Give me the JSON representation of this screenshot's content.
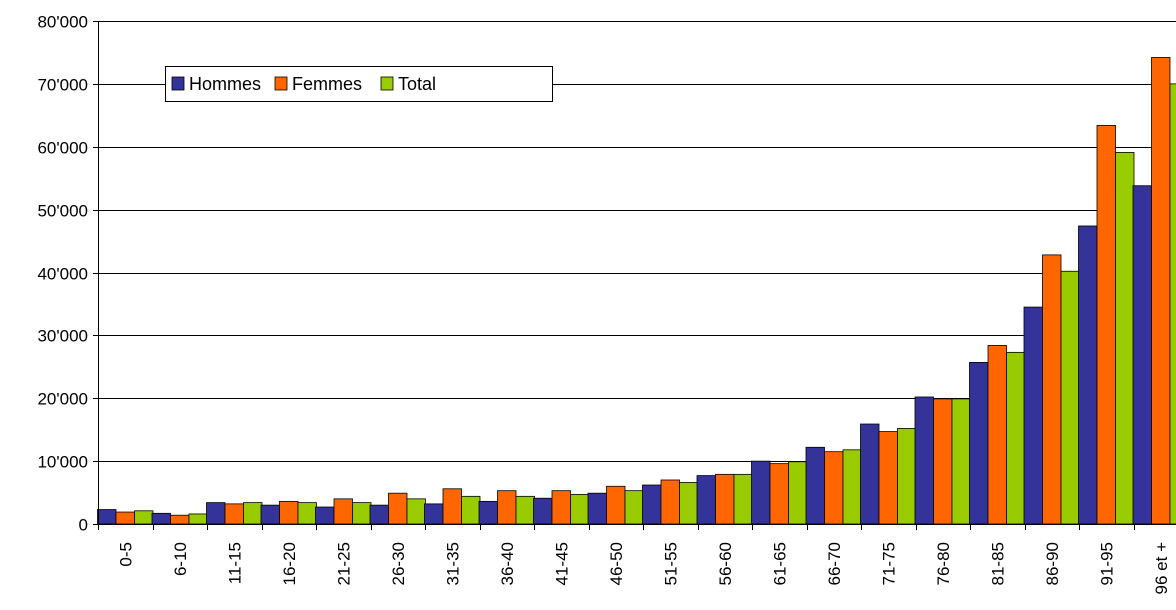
{
  "chart_data": {
    "type": "bar",
    "categories": [
      "0-5",
      "6-10",
      "11-15",
      "16-20",
      "21-25",
      "26-30",
      "31-35",
      "36-40",
      "41-45",
      "46-50",
      "51-55",
      "56-60",
      "61-65",
      "66-70",
      "71-75",
      "76-80",
      "81-85",
      "86-90",
      "91-95",
      "96 et +"
    ],
    "series": [
      {
        "name": "Hommes",
        "color": "#333399",
        "values": [
          2300,
          1700,
          3400,
          3000,
          2700,
          3000,
          3200,
          3600,
          4100,
          4900,
          6200,
          7700,
          10000,
          12200,
          15900,
          20200,
          25700,
          34500,
          47400,
          53800
        ]
      },
      {
        "name": "Femmes",
        "color": "#ff6600",
        "values": [
          1900,
          1400,
          3200,
          3600,
          4000,
          4900,
          5600,
          5300,
          5300,
          6000,
          7000,
          7900,
          9600,
          11500,
          14700,
          19900,
          28400,
          42800,
          63400,
          74200
        ]
      },
      {
        "name": "Total",
        "color": "#99cc00",
        "values": [
          2100,
          1600,
          3400,
          3400,
          3400,
          4000,
          4400,
          4400,
          4700,
          5300,
          6600,
          7900,
          9900,
          11800,
          15200,
          19900,
          27300,
          40200,
          59100,
          70000
        ]
      }
    ],
    "ylim": [
      0,
      80000
    ],
    "yticks": [
      0,
      10000,
      20000,
      30000,
      40000,
      50000,
      60000,
      70000,
      80000
    ],
    "ytick_labels": [
      "0",
      "10'000",
      "20'000",
      "30'000",
      "40'000",
      "50'000",
      "60'000",
      "70'000",
      "80'000"
    ],
    "grid": true,
    "legend_position": "top-left",
    "title": "",
    "xlabel": "",
    "ylabel": ""
  }
}
